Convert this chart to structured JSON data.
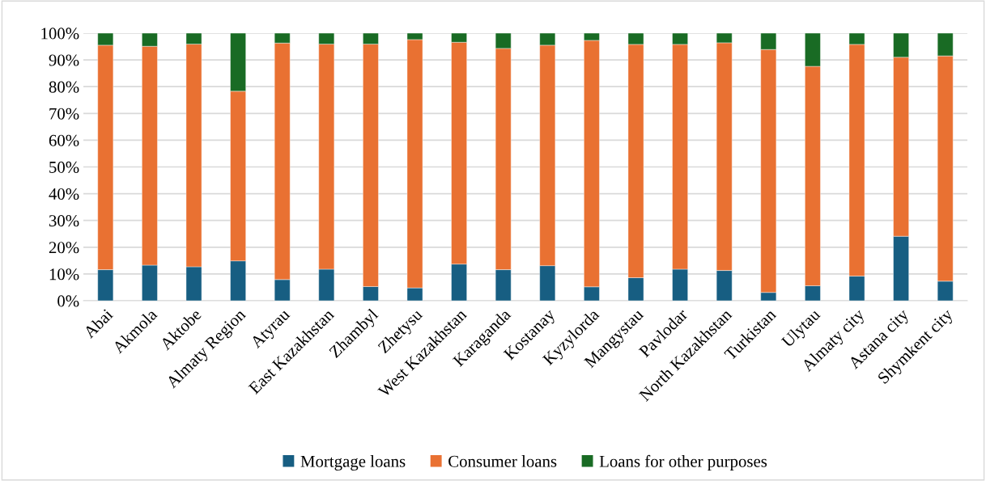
{
  "chart_data": {
    "type": "bar",
    "stacked": true,
    "categories": [
      "Abai",
      "Akmola",
      "Aktobe",
      "Almaty Region",
      "Atyrau",
      "East Kazakhstan",
      "Zhambyl",
      "Zhetysu",
      "West Kazakhstan",
      "Karaganda",
      "Kostanay",
      "Kyzylorda",
      "Mangystau",
      "Pavlodar",
      "North Kazakhstan",
      "Turkistan",
      "Ulytau",
      "Almaty city",
      "Astana city",
      "Shymkent city"
    ],
    "series": [
      {
        "name": "Mortgage loans",
        "color": "#175e82",
        "values": [
          11.6,
          13.3,
          12.7,
          14.9,
          7.9,
          11.8,
          5.3,
          4.8,
          13.7,
          11.6,
          13.1,
          5.2,
          8.6,
          11.8,
          11.3,
          3.1,
          5.6,
          9.2,
          24.1,
          7.3
        ]
      },
      {
        "name": "Consumer loans",
        "color": "#e97132",
        "values": [
          83.9,
          81.8,
          83.2,
          63.4,
          88.4,
          84.1,
          90.6,
          92.8,
          82.9,
          82.7,
          82.4,
          92.1,
          87.2,
          84.0,
          85.1,
          90.8,
          82.0,
          86.6,
          66.9,
          84.2
        ]
      },
      {
        "name": "Loans for other purposes",
        "color": "#196b24",
        "values": [
          4.5,
          4.9,
          4.1,
          21.7,
          3.7,
          4.1,
          4.1,
          2.4,
          3.4,
          5.7,
          4.5,
          2.7,
          4.2,
          4.2,
          3.6,
          6.1,
          12.4,
          4.2,
          9.0,
          8.5
        ]
      }
    ],
    "ylim": [
      0,
      100
    ],
    "yticks": [
      {
        "value": 0,
        "label": "0%"
      },
      {
        "value": 10,
        "label": "10%"
      },
      {
        "value": 20,
        "label": "20%"
      },
      {
        "value": 30,
        "label": "30%"
      },
      {
        "value": 40,
        "label": "40%"
      },
      {
        "value": 50,
        "label": "50%"
      },
      {
        "value": 60,
        "label": "60%"
      },
      {
        "value": 70,
        "label": "70%"
      },
      {
        "value": 80,
        "label": "80%"
      },
      {
        "value": 90,
        "label": "90%"
      },
      {
        "value": 100,
        "label": "100%"
      }
    ],
    "grid": "y",
    "legend": "bottom"
  }
}
